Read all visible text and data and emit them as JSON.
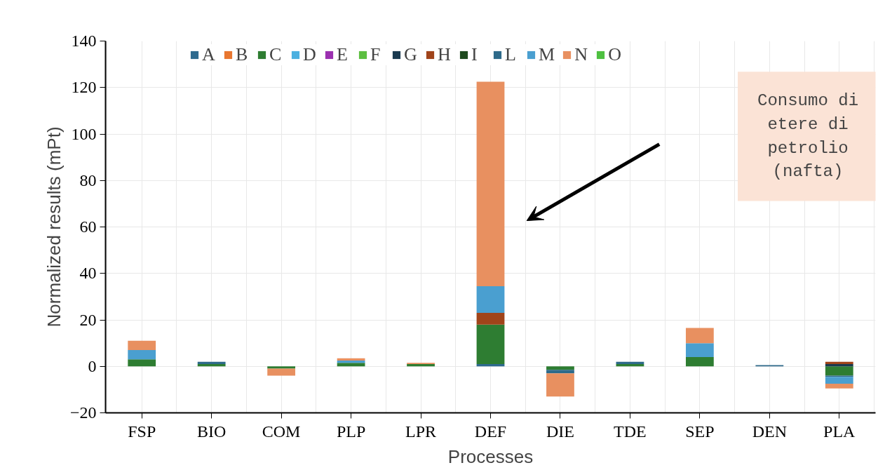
{
  "chart_data": {
    "type": "bar",
    "stacked": true,
    "xlabel": "Processes",
    "ylabel": "Normalized results (mPt)",
    "categories": [
      "FSP",
      "BIO",
      "COM",
      "PLP",
      "LPR",
      "DEF",
      "DIE",
      "TDE",
      "SEP",
      "DEN",
      "PLA"
    ],
    "ylim": [
      -20,
      140
    ],
    "yticks": [
      -20,
      0,
      20,
      40,
      60,
      80,
      100,
      120,
      140
    ],
    "grid": true,
    "legend": "top",
    "annotations": [
      "Consumo di etere di petrolio (nafta)"
    ],
    "series": [
      {
        "name": "A",
        "color": "#2e6a8e",
        "values": [
          null,
          null,
          null,
          null,
          null,
          1,
          null,
          null,
          null,
          null,
          null
        ]
      },
      {
        "name": "B",
        "color": "#e8762f",
        "values": [
          null,
          null,
          null,
          null,
          null,
          null,
          null,
          null,
          null,
          null,
          null
        ]
      },
      {
        "name": "C",
        "color": "#2e7d32",
        "values": [
          3,
          1,
          -1,
          1.5,
          1,
          17,
          -1.5,
          1,
          4,
          null,
          -4
        ]
      },
      {
        "name": "D",
        "color": "#4bb0e0",
        "values": [
          null,
          null,
          null,
          null,
          null,
          null,
          null,
          null,
          null,
          null,
          null
        ]
      },
      {
        "name": "E",
        "color": "#9b30b0",
        "values": [
          null,
          null,
          null,
          null,
          null,
          null,
          null,
          null,
          null,
          null,
          null
        ]
      },
      {
        "name": "F",
        "color": "#5cbf40",
        "values": [
          null,
          null,
          null,
          null,
          null,
          null,
          null,
          null,
          null,
          null,
          null
        ]
      },
      {
        "name": "G",
        "color": "#1a3a50",
        "values": [
          null,
          null,
          null,
          null,
          null,
          null,
          null,
          null,
          null,
          null,
          1
        ]
      },
      {
        "name": "H",
        "color": "#a0441a",
        "values": [
          null,
          null,
          null,
          null,
          null,
          5,
          null,
          null,
          null,
          null,
          1
        ]
      },
      {
        "name": "I",
        "color": "#1e4a1e",
        "values": [
          null,
          null,
          null,
          null,
          null,
          null,
          null,
          null,
          null,
          null,
          null
        ]
      },
      {
        "name": "L",
        "color": "#2e6a8a",
        "values": [
          null,
          1,
          null,
          null,
          null,
          null,
          -1.5,
          1,
          null,
          0.5,
          -0.5
        ]
      },
      {
        "name": "M",
        "color": "#4a9fd0",
        "values": [
          4,
          null,
          null,
          1,
          null,
          11.5,
          null,
          null,
          6,
          null,
          -3
        ]
      },
      {
        "name": "N",
        "color": "#e89060",
        "values": [
          4,
          null,
          -3,
          1,
          0.5,
          88,
          -10,
          null,
          6.5,
          null,
          -2
        ]
      },
      {
        "name": "O",
        "color": "#4ec040",
        "values": [
          null,
          null,
          null,
          null,
          null,
          null,
          null,
          null,
          null,
          null,
          null
        ]
      }
    ]
  }
}
